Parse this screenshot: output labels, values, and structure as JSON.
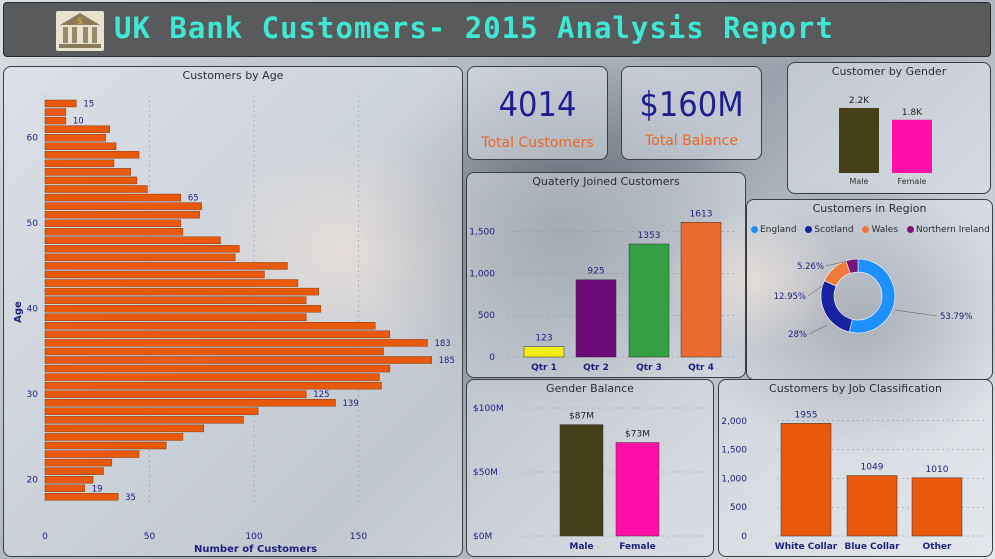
{
  "header": {
    "title": "UK Bank Customers- 2015 Analysis Report",
    "icon": "bank-icon"
  },
  "kpis": {
    "total_customers": {
      "value": "4014",
      "label": "Total Customers"
    },
    "total_balance": {
      "value": "$160M",
      "label": "Total Balance"
    }
  },
  "colors": {
    "orange": "#e8590c",
    "male": "#45401a",
    "female": "#ff0fa8",
    "england": "#1e90ff",
    "scotland": "#17239e",
    "wales": "#ef7a3a",
    "northern_ireland": "#7a147a",
    "q1": "#f2ee12",
    "q2": "#6c0a7a",
    "q3": "#32a043",
    "q4": "#ea6b2e"
  },
  "chart_data": [
    {
      "id": "age",
      "type": "bar",
      "orientation": "horizontal",
      "title": "Customers by Age",
      "xlabel": "Number of Customers",
      "ylabel": "Age",
      "xlim": [
        0,
        190
      ],
      "xticks": [
        "0",
        "50",
        "100",
        "150"
      ],
      "yticks": [
        "20",
        "30",
        "40",
        "50",
        "60"
      ],
      "age_min": 18,
      "age_max": 64,
      "values_top_to_bottom": [
        15,
        10,
        10,
        31,
        29,
        34,
        45,
        33,
        41,
        44,
        49,
        65,
        75,
        74,
        65,
        66,
        84,
        93,
        91,
        116,
        105,
        121,
        131,
        125,
        132,
        125,
        158,
        165,
        183,
        162,
        185,
        165,
        160,
        161,
        125,
        139,
        102,
        95,
        76,
        66,
        58,
        45,
        32,
        28,
        23,
        19,
        35
      ],
      "data_labels": [
        {
          "age": 64,
          "value": "15"
        },
        {
          "age": 62,
          "value": "10"
        },
        {
          "age": 53,
          "value": "65"
        },
        {
          "age": 36,
          "value": "183"
        },
        {
          "age": 34,
          "value": "185"
        },
        {
          "age": 30,
          "value": "125"
        },
        {
          "age": 29,
          "value": "139"
        },
        {
          "age": 19,
          "value": "19"
        },
        {
          "age": 18,
          "value": "35"
        }
      ]
    },
    {
      "id": "gender",
      "type": "bar",
      "title": "Customer by Gender",
      "categories": [
        "Male",
        "Female"
      ],
      "values": [
        2200,
        1800
      ],
      "data_labels": [
        "2.2K",
        "1.8K"
      ]
    },
    {
      "id": "quarterly",
      "type": "bar",
      "title": "Quaterly Joined Customers",
      "categories": [
        "Qtr 1",
        "Qtr 2",
        "Qtr 3",
        "Qtr 4"
      ],
      "values": [
        123,
        925,
        1353,
        1613
      ],
      "data_labels": [
        "123",
        "925",
        "1353",
        "1613"
      ],
      "ylim": [
        0,
        1700
      ],
      "yticks": [
        "0",
        "500",
        "1,000",
        "1,500"
      ]
    },
    {
      "id": "region",
      "type": "pie",
      "title": "Customers in Region",
      "labels": [
        "England",
        "Scotland",
        "Wales",
        "Northern Ireland"
      ],
      "values": [
        53.79,
        28,
        12.95,
        5.26
      ],
      "data_labels": [
        "53.79%",
        "28%",
        "12.95%",
        "5.26%"
      ],
      "legend": "top"
    },
    {
      "id": "balance",
      "type": "bar",
      "title": "Gender Balance",
      "categories": [
        "Male",
        "Female"
      ],
      "values": [
        87,
        73
      ],
      "data_labels": [
        "$87M",
        "$73M"
      ],
      "ylim": [
        0,
        100
      ],
      "yticks": [
        "$0M",
        "$50M",
        "$100M"
      ]
    },
    {
      "id": "job",
      "type": "bar",
      "title": "Customers by Job Classification",
      "categories": [
        "White Collar",
        "Blue Collar",
        "Other"
      ],
      "values": [
        1955,
        1049,
        1010
      ],
      "data_labels": [
        "1955",
        "1049",
        "1010"
      ],
      "ylim": [
        0,
        2100
      ],
      "yticks": [
        "0",
        "500",
        "1,000",
        "1,500",
        "2,000"
      ]
    }
  ]
}
